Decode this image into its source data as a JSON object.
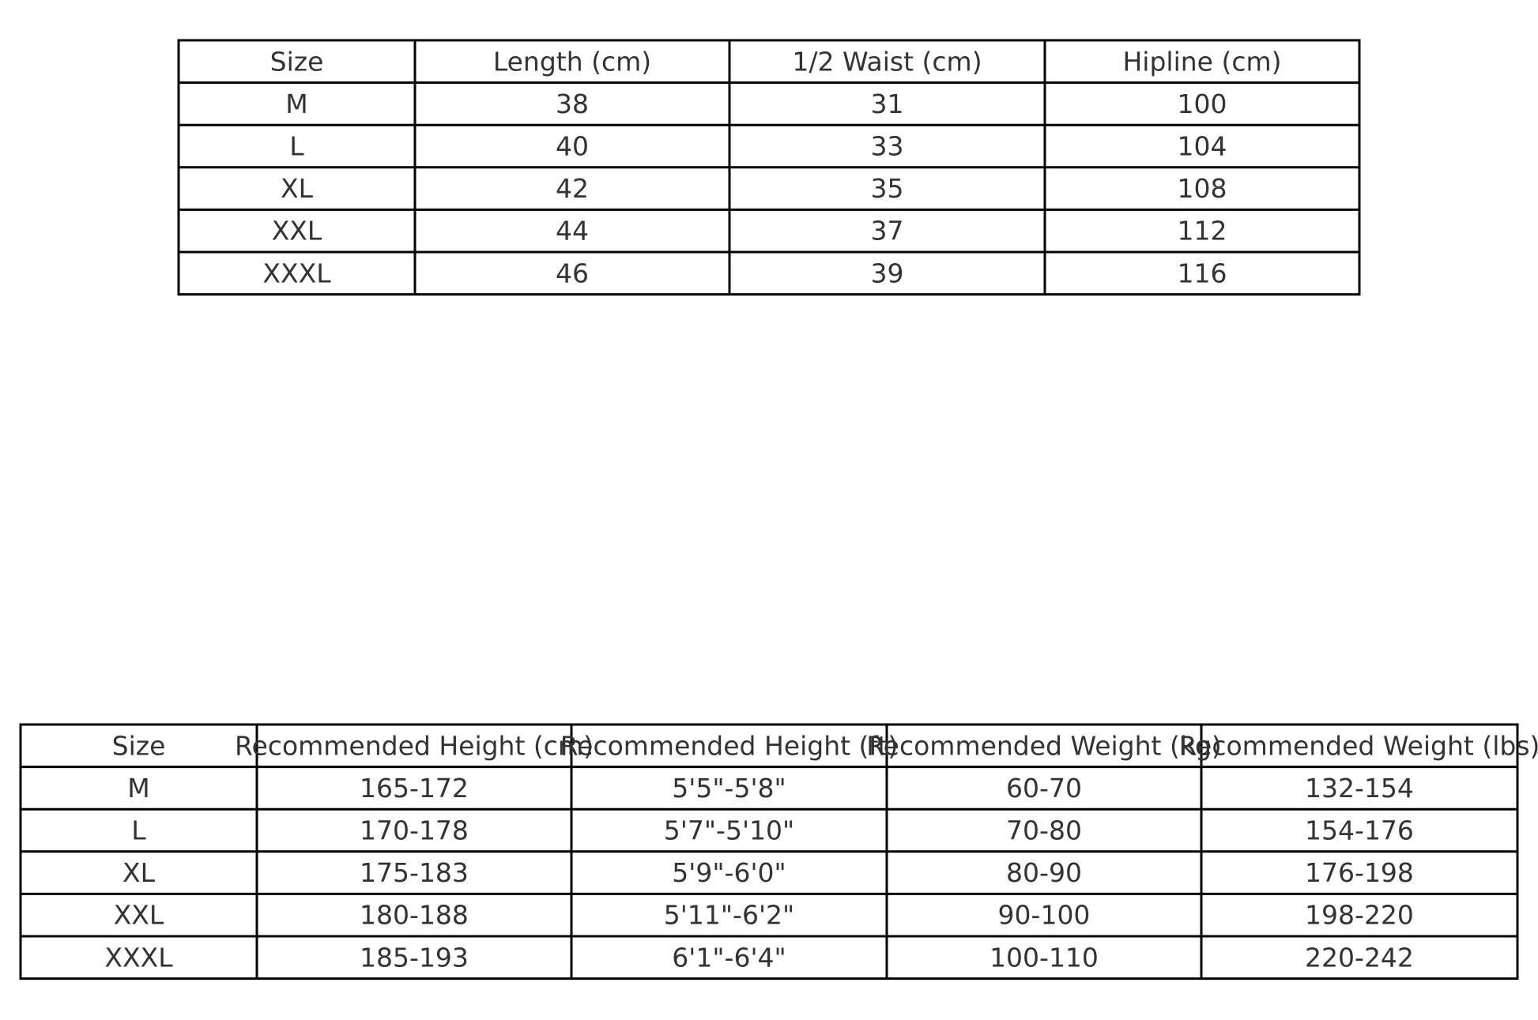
{
  "tables": [
    {
      "header": [
        "Size",
        "Length (cm)",
        "1/2 Waist (cm)",
        "Hipline (cm)"
      ],
      "rows": [
        [
          "M",
          38,
          31,
          100
        ],
        [
          "L",
          40,
          33,
          104
        ],
        [
          "XL",
          42,
          35,
          108
        ],
        [
          "XXL",
          44,
          37,
          112
        ],
        [
          "XXXL",
          46,
          39,
          116
        ]
      ]
    },
    {
      "header": [
        "Size",
        "Recommended Height (cm)",
        "Recommended Height (ft)",
        "Recommended Weight (kg)",
        "Recommended Weight (lbs)"
      ],
      "rows": [
        [
          "M",
          "165-172",
          "5'5\"-5'8\"",
          "60-70",
          "132-154"
        ],
        [
          "L",
          "170-178",
          "5'7\"-5'10\"",
          "70-80",
          "154-176"
        ],
        [
          "XL",
          "175-183",
          "5'9\"-6'0\"",
          "80-90",
          "176-198"
        ],
        [
          "XXL",
          "180-188",
          "5'11\"-6'2\"",
          "90-100",
          "198-220"
        ],
        [
          "XXXL",
          "185-193",
          "6'1\"-6'4\"",
          "100-110",
          "220-242"
        ]
      ]
    }
  ]
}
